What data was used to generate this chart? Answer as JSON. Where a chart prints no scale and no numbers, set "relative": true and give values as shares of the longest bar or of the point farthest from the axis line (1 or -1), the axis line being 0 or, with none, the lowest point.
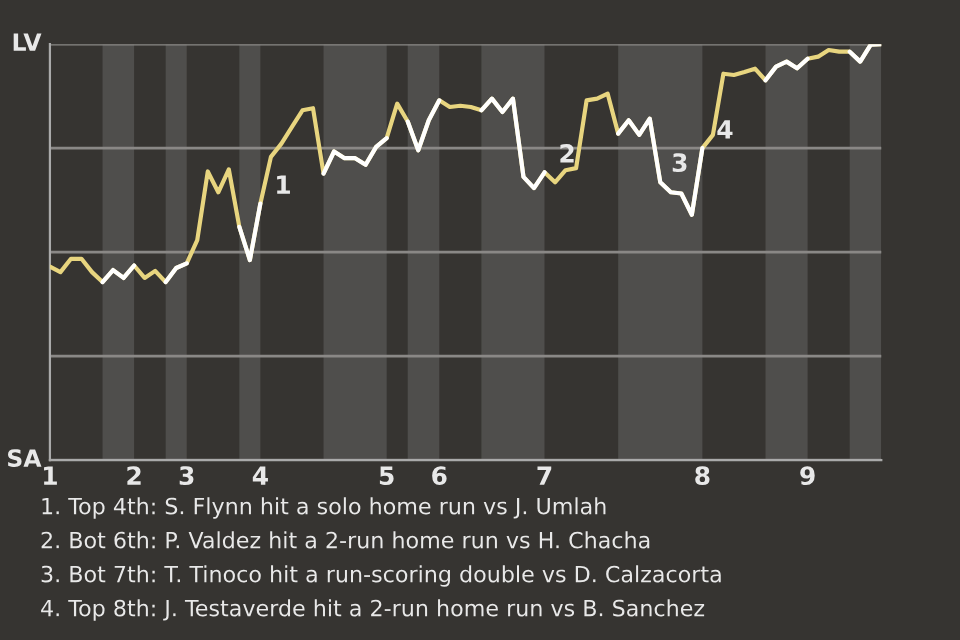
{
  "chart_data": {
    "type": "line",
    "relative": true,
    "categories": [
      "1",
      null,
      null,
      null,
      null,
      null,
      null,
      null,
      "2",
      null,
      null,
      null,
      null,
      "3",
      null,
      null,
      null,
      null,
      null,
      null,
      "4",
      null,
      null,
      null,
      null,
      null,
      null,
      null,
      null,
      null,
      null,
      null,
      "5",
      null,
      null,
      null,
      null,
      "6",
      null,
      null,
      null,
      null,
      null,
      null,
      null,
      null,
      null,
      "7",
      null,
      null,
      null,
      null,
      null,
      null,
      null,
      null,
      null,
      null,
      null,
      null,
      null,
      null,
      "8",
      null,
      null,
      null,
      null,
      null,
      null,
      null,
      null,
      null,
      "9",
      null,
      null,
      null,
      null,
      null,
      null,
      null
    ],
    "series": [
      {
        "color": "#e8d57f",
        "values": [
          0.465,
          0.452,
          0.484,
          0.484,
          0.452,
          0.428,
          0.457,
          0.438,
          0.468,
          0.438,
          0.455,
          0.428,
          0.462,
          0.473,
          0.529,
          0.694,
          0.644,
          0.699,
          0.561,
          0.481,
          0.617,
          0.729,
          0.761,
          0.801,
          0.841,
          0.846,
          0.689,
          0.742,
          0.726,
          0.726,
          0.71,
          0.753,
          0.774,
          0.857,
          0.814,
          0.745,
          0.817,
          0.865,
          0.849,
          0.852,
          0.849,
          0.841,
          0.869,
          0.837,
          0.869,
          0.681,
          0.654,
          0.692,
          0.668,
          0.697,
          0.702,
          0.865,
          0.869,
          0.881,
          0.785,
          0.817,
          0.782,
          0.821,
          0.668,
          0.644,
          0.641,
          0.59,
          0.75,
          0.782,
          0.929,
          0.926,
          0.933,
          0.941,
          0.913,
          0.946,
          0.958,
          0.942,
          0.965,
          0.97,
          0.986,
          0.982,
          0.982,
          0.958,
          0.999,
          1
        ]
      },
      {
        "color": "#ffffff",
        "values": [
          null,
          null,
          null,
          null,
          null,
          0.428,
          0.457,
          0.438,
          0.468,
          null,
          null,
          0.428,
          0.462,
          0.473,
          null,
          null,
          null,
          null,
          0.561,
          0.481,
          0.617,
          null,
          null,
          null,
          null,
          null,
          0.689,
          0.742,
          0.726,
          0.726,
          0.71,
          0.753,
          0.774,
          null,
          0.814,
          0.745,
          0.817,
          0.865,
          null,
          null,
          null,
          0.841,
          0.869,
          0.837,
          0.869,
          0.681,
          0.654,
          0.692,
          null,
          null,
          null,
          null,
          null,
          null,
          0.785,
          0.817,
          0.782,
          0.821,
          0.668,
          0.644,
          0.641,
          0.59,
          0.75,
          null,
          null,
          null,
          null,
          null,
          0.913,
          0.946,
          0.958,
          0.942,
          0.965,
          null,
          null,
          null,
          0.982,
          0.958,
          0.999,
          1
        ]
      }
    ],
    "grid": "y",
    "annotations": [
      "LV",
      "SA",
      {
        "text": "1",
        "x": "4",
        "y": 0.617
      },
      {
        "text": "2",
        "x": "7",
        "y": 0.692
      },
      {
        "text": "3",
        "x": "8",
        "y": 0.75
      },
      {
        "text": "4",
        "x": "8",
        "y": 0.75
      },
      "1. Top 4th: S. Flynn hit a solo home run vs J. Umlah",
      "2. Bot 6th: P. Valdez hit a 2-run home run vs H. Chacha",
      "3. Bot 7th: T. Tinoco hit a run-scoring double vs D. Calzacorta",
      "4. Top 8th: J. Testaverde hit a 2-run home run vs B. Sanchez"
    ]
  }
}
